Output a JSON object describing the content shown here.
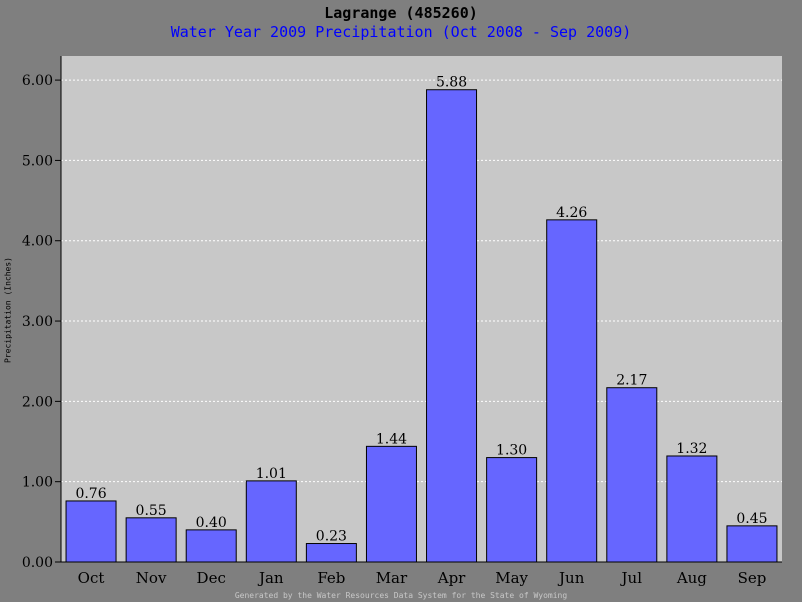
{
  "colors": {
    "background": "#7f7f7f",
    "plot_area": "#c8c8c8",
    "bar": "#6666ff",
    "title": "#000000",
    "subtitle": "#0000ff",
    "footer": "#c8c8c8",
    "grid": "#ffffff"
  },
  "footer_text": "Generated by the Water Resources Data System for the State of Wyoming",
  "chart_data": {
    "type": "bar",
    "title": "Lagrange (485260)",
    "subtitle": "Water Year 2009 Precipitation (Oct 2008 - Sep 2009)",
    "xlabel": "",
    "ylabel": "Precipitation (Inches)",
    "categories": [
      "Oct",
      "Nov",
      "Dec",
      "Jan",
      "Feb",
      "Mar",
      "Apr",
      "May",
      "Jun",
      "Jul",
      "Aug",
      "Sep"
    ],
    "values": [
      0.76,
      0.55,
      0.4,
      1.01,
      0.23,
      1.44,
      5.88,
      1.3,
      4.26,
      2.17,
      1.32,
      0.45
    ],
    "value_labels": [
      "0.76",
      "0.55",
      "0.40",
      "1.01",
      "0.23",
      "1.44",
      "5.88",
      "1.30",
      "4.26",
      "2.17",
      "1.32",
      "0.45"
    ],
    "ylim": [
      0,
      6.3
    ],
    "yticks": [
      0,
      1,
      2,
      3,
      4,
      5,
      6
    ],
    "ytick_labels": [
      "0.00",
      "1.00",
      "2.00",
      "3.00",
      "4.00",
      "5.00",
      "6.00"
    ],
    "grid": "horizontal dashed",
    "legend": "none"
  }
}
